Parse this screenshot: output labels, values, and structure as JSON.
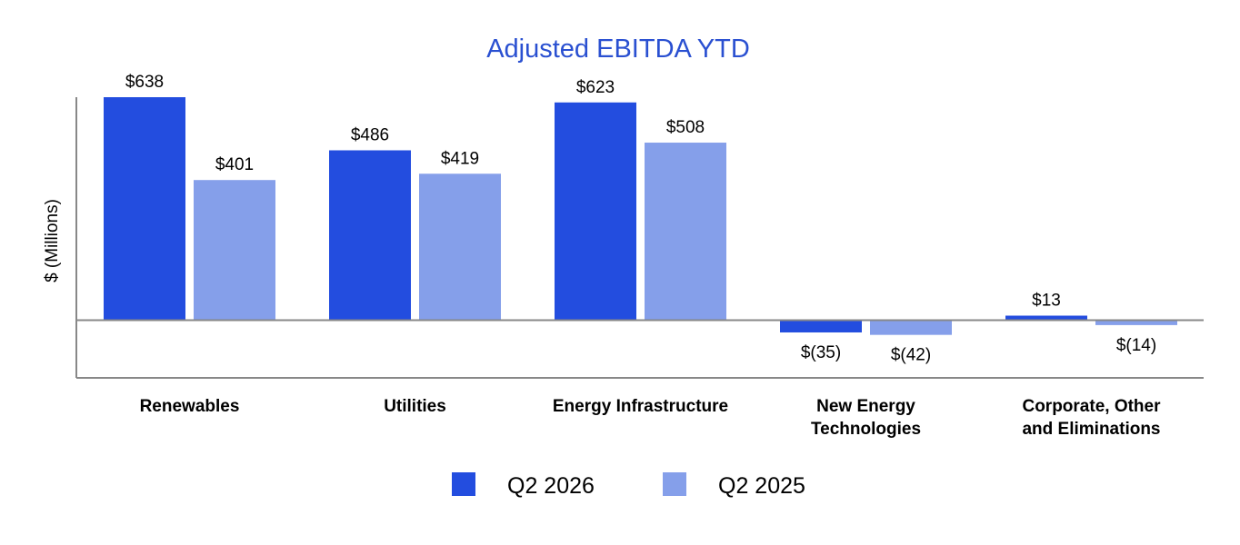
{
  "chart_data": {
    "type": "bar",
    "title": "Adjusted EBITDA YTD",
    "ylabel": "$ (Millions)",
    "xlabel": "",
    "categories": [
      [
        "Renewables"
      ],
      [
        "Utilities"
      ],
      [
        "Energy Infrastructure"
      ],
      [
        "New Energy",
        "Technologies"
      ],
      [
        "Corporate, Other",
        "and Eliminations"
      ]
    ],
    "series": [
      {
        "name": "Q2 2026",
        "color": "#234ddf",
        "values": [
          638,
          486,
          623,
          -35,
          13
        ],
        "labels": [
          "$638",
          "$486",
          "$623",
          "$(35)",
          "$13"
        ]
      },
      {
        "name": "Q2 2025",
        "color": "#859fea",
        "values": [
          401,
          419,
          508,
          -42,
          -14
        ],
        "labels": [
          "$401",
          "$419",
          "$508",
          "$(42)",
          "$(14)"
        ]
      }
    ],
    "ylim": [
      -165,
      638
    ],
    "grid": false,
    "legend_position": "bottom",
    "title_color": "#2a50d1",
    "axis_color": "#888888"
  }
}
